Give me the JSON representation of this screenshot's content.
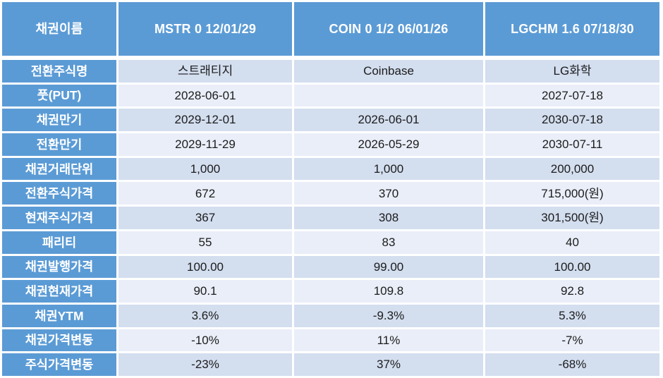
{
  "table": {
    "header": {
      "label": "채권이름",
      "columns": [
        "MSTR 0 12/01/29",
        "COIN 0 1/2 06/01/26",
        "LGCHM 1.6 07/18/30"
      ]
    },
    "rows": [
      {
        "label": "전환주식명",
        "values": [
          "스트래티지",
          "Coinbase",
          "LG화학"
        ]
      },
      {
        "label": "풋(PUT)",
        "values": [
          "2028-06-01",
          "",
          "2027-07-18"
        ]
      },
      {
        "label": "채권만기",
        "values": [
          "2029-12-01",
          "2026-06-01",
          "2030-07-18"
        ]
      },
      {
        "label": "전환만기",
        "values": [
          "2029-11-29",
          "2026-05-29",
          "2030-07-11"
        ]
      },
      {
        "label": "채권거래단위",
        "values": [
          "1,000",
          "1,000",
          "200,000"
        ]
      },
      {
        "label": "전환주식가격",
        "values": [
          "672",
          "370",
          "715,000(원)"
        ]
      },
      {
        "label": "현재주식가격",
        "values": [
          "367",
          "308",
          "301,500(원)"
        ]
      },
      {
        "label": "패리티",
        "values": [
          "55",
          "83",
          "40"
        ]
      },
      {
        "label": "채권발행가격",
        "values": [
          "100.00",
          "99.00",
          "100.00"
        ]
      },
      {
        "label": "채권현재가격",
        "values": [
          "90.1",
          "109.8",
          "92.8"
        ]
      },
      {
        "label": "채권YTM",
        "values": [
          "3.6%",
          "-9.3%",
          "5.3%"
        ]
      },
      {
        "label": "채권가격변동",
        "values": [
          "-10%",
          "11%",
          "-7%"
        ]
      },
      {
        "label": "주식가격변동",
        "values": [
          "-23%",
          "37%",
          "-68%"
        ]
      }
    ],
    "colors": {
      "header_blue": "#5B9BD5",
      "band_dark": "#D3DEEF",
      "band_light": "#E9EEF8",
      "gap_white": "#FFFFFF",
      "header_text": "#FFFFFF",
      "data_text": "#1C1C1C"
    }
  }
}
